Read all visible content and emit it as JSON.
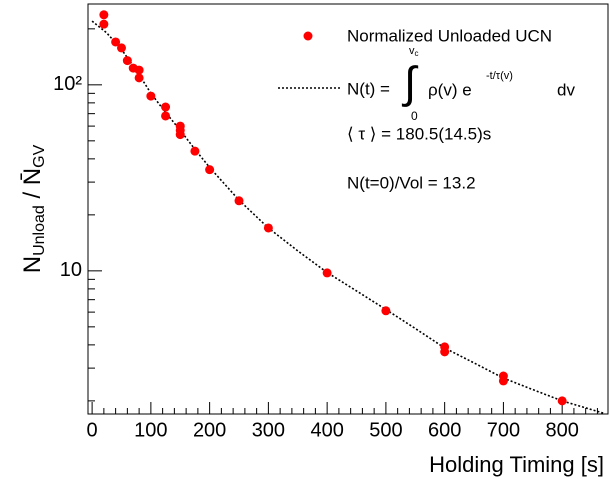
{
  "chart_data": {
    "type": "scatter",
    "xlabel": "Holding Timing [s]",
    "ylabel": {
      "main": "N",
      "sub": "Unload",
      "sep": " / ",
      "main2": "N̄",
      "sub2": "GV"
    },
    "xlim": [
      -7,
      878
    ],
    "ylim": [
      1.7,
      272
    ],
    "log_y": true,
    "xticks": [
      0,
      100,
      200,
      300,
      400,
      500,
      600,
      700,
      800
    ],
    "xminorticks": [
      20,
      40,
      60,
      80,
      120,
      140,
      160,
      180,
      220,
      240,
      260,
      280,
      320,
      340,
      360,
      380,
      420,
      440,
      460,
      480,
      520,
      540,
      560,
      580,
      620,
      640,
      660,
      680,
      720,
      740,
      760,
      780,
      820,
      840,
      860
    ],
    "yticks": [
      10,
      {
        "value": 100,
        "label": "10²"
      }
    ],
    "yminorticks": [
      2,
      3,
      4,
      5,
      6,
      7,
      8,
      9,
      20,
      30,
      40,
      50,
      60,
      70,
      80,
      90,
      200
    ],
    "series": [
      {
        "name": "Normalized Unloaded UCN",
        "color": "#ff0000",
        "x": [
          20,
          20,
          40,
          50,
          60,
          70,
          80,
          80,
          100,
          125,
          125,
          150,
          150,
          150,
          175,
          200,
          250,
          300,
          400,
          500,
          600,
          600,
          700,
          700,
          800
        ],
        "values": [
          238,
          212,
          170,
          158,
          135,
          123,
          120,
          109,
          87,
          76,
          68,
          60,
          57,
          54,
          44,
          35,
          23.8,
          17.0,
          9.75,
          6.1,
          3.9,
          3.67,
          2.72,
          2.56,
          2.0
        ]
      },
      {
        "color": "#000000",
        "x": [
          0,
          25,
          50,
          75,
          100,
          125,
          150,
          175,
          200,
          250,
          300,
          350,
          400,
          450,
          500,
          550,
          600,
          650,
          700,
          750,
          800,
          870
        ],
        "values": [
          220,
          190,
          155,
          120,
          90,
          71,
          57,
          45,
          36,
          24,
          17,
          12.8,
          9.8,
          7.8,
          6.2,
          4.9,
          3.85,
          3.2,
          2.65,
          2.3,
          2.0,
          1.72
        ]
      }
    ],
    "formula": {
      "lhs": "N(t) =",
      "integral": "∫",
      "upper": "v",
      "upper_sub": "c",
      "lower": "0",
      "integrand": "ρ(v) e",
      "exponent": "-t/τ(v)",
      "tail": "dv"
    },
    "annotations": [
      "⟨ τ ⟩ = 180.5(14.5)s",
      "N(t=0)/Vol = 13.2"
    ]
  }
}
